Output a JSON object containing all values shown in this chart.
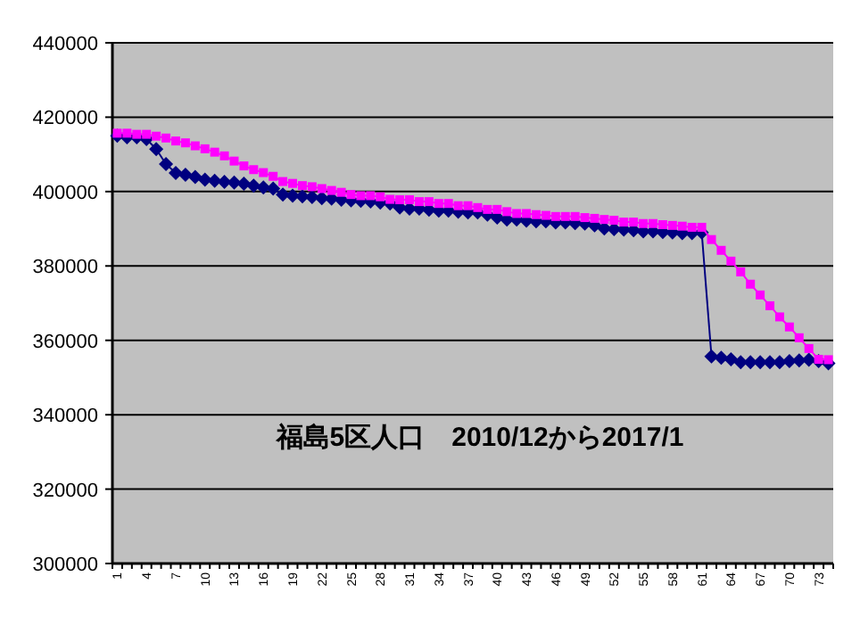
{
  "chart_data": {
    "type": "line",
    "title": "福島5区人口　2010/12から2017/1",
    "categories": [
      "1",
      null,
      null,
      "4",
      null,
      null,
      "7",
      null,
      null,
      "10",
      null,
      null,
      "13",
      null,
      null,
      "16",
      null,
      null,
      "19",
      null,
      null,
      "22",
      null,
      null,
      "25",
      null,
      null,
      "28",
      null,
      null,
      "31",
      null,
      null,
      "34",
      null,
      null,
      "37",
      null,
      null,
      "40",
      null,
      null,
      "43",
      null,
      null,
      "46",
      null,
      null,
      "49",
      null,
      null,
      "52",
      null,
      null,
      "55",
      null,
      null,
      "58",
      null,
      null,
      "61",
      null,
      null,
      "64",
      null,
      null,
      "67",
      null,
      null,
      "70",
      null,
      null,
      "73",
      null
    ],
    "series": [
      {
        "color": "#000080",
        "marker": "diamond",
        "values": [
          415000,
          414600,
          414600,
          414100,
          411400,
          407400,
          405000,
          404500,
          403900,
          403200,
          402900,
          402600,
          402400,
          402100,
          401600,
          401100,
          400800,
          399200,
          398900,
          398700,
          398500,
          398200,
          398100,
          397800,
          397600,
          397500,
          397300,
          397000,
          396800,
          395700,
          395400,
          395400,
          395100,
          394900,
          394900,
          394600,
          394400,
          394400,
          393800,
          393000,
          392500,
          392500,
          392200,
          392000,
          392000,
          391700,
          391700,
          391500,
          391400,
          390900,
          390100,
          389900,
          389800,
          389600,
          389300,
          389300,
          389100,
          389000,
          388800,
          388800,
          389000,
          355700,
          355300,
          354900,
          354100,
          354100,
          354100,
          354100,
          354100,
          354400,
          354600,
          354800,
          354400,
          353800
        ]
      },
      {
        "color": "#ff00ff",
        "marker": "square",
        "values": [
          415700,
          415700,
          415400,
          415400,
          414900,
          414400,
          413600,
          413100,
          412300,
          411500,
          410600,
          409600,
          408200,
          406900,
          405900,
          405100,
          404100,
          402700,
          402200,
          401600,
          401300,
          400800,
          400300,
          399800,
          399200,
          398900,
          398900,
          398600,
          397900,
          397800,
          397800,
          397300,
          397300,
          396800,
          396800,
          396200,
          396200,
          395700,
          395200,
          395200,
          394600,
          394100,
          394100,
          393800,
          393600,
          393300,
          393300,
          393300,
          393000,
          392800,
          392500,
          392300,
          391800,
          391800,
          391400,
          391400,
          391100,
          390900,
          390700,
          390400,
          390400,
          387100,
          384200,
          381300,
          378400,
          375100,
          372200,
          369300,
          366300,
          363600,
          360700,
          357800,
          354900,
          354800
        ]
      }
    ],
    "ylim": [
      300000,
      440000
    ],
    "yticks": [
      300000,
      320000,
      340000,
      360000,
      380000,
      400000,
      420000,
      440000
    ],
    "grid": "y"
  }
}
